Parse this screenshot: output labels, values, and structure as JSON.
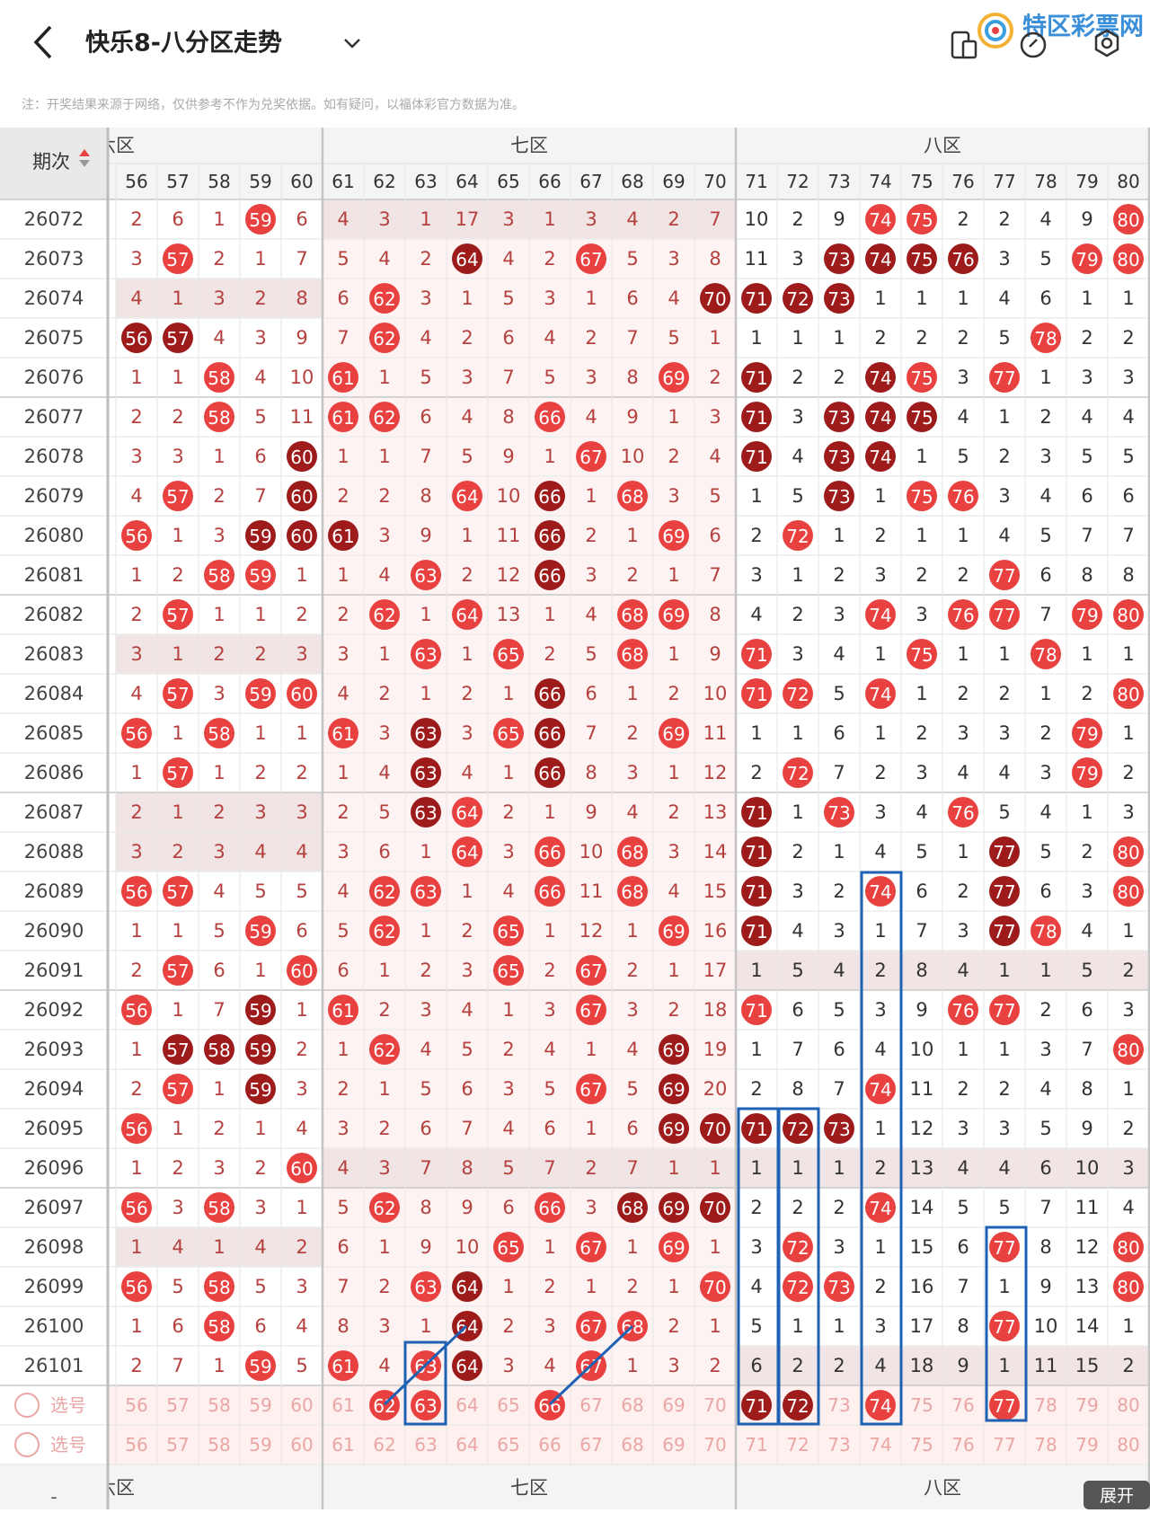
{
  "header": {
    "title": "快乐8-八分区走势",
    "watermark": "特区彩票网"
  },
  "note": "注：开奖结果来源于网络，仅供参考不作为兑奖依据。如有疑问，以福体彩官方数据为准。",
  "table": {
    "period_header": "期次",
    "zones": [
      {
        "name": "六区",
        "columns": 5
      },
      {
        "name": "七区",
        "columns": 10
      },
      {
        "name": "八区",
        "columns": 10
      }
    ],
    "columns": [
      56,
      57,
      58,
      59,
      60,
      61,
      62,
      63,
      64,
      65,
      66,
      67,
      68,
      69,
      70,
      71,
      72,
      73,
      74,
      75,
      76,
      77,
      78,
      79,
      80
    ],
    "ball_colors": {
      "light": "#e8413f",
      "dark": "#9e1b1b"
    },
    "rows": [
      {
        "period": 26072,
        "cells": [
          2,
          6,
          1,
          59,
          6,
          4,
          3,
          1,
          17,
          3,
          1,
          3,
          4,
          2,
          7,
          10,
          2,
          9,
          74,
          75,
          2,
          2,
          4,
          9,
          80
        ]
      },
      {
        "period": 26073,
        "cells": [
          3,
          57,
          2,
          1,
          7,
          5,
          4,
          2,
          {
            "value": 64,
            "tone": "dark"
          },
          4,
          2,
          67,
          5,
          3,
          8,
          11,
          3,
          {
            "value": 73,
            "tone": "dark"
          },
          {
            "value": 74,
            "tone": "dark"
          },
          {
            "value": 75,
            "tone": "dark"
          },
          {
            "value": 76,
            "tone": "dark"
          },
          3,
          5,
          79,
          80
        ]
      },
      {
        "period": 26074,
        "cells": [
          4,
          1,
          3,
          2,
          8,
          6,
          62,
          3,
          1,
          5,
          3,
          1,
          6,
          4,
          {
            "value": 70,
            "tone": "dark"
          },
          {
            "value": 71,
            "tone": "dark"
          },
          {
            "value": 72,
            "tone": "dark"
          },
          {
            "value": 73,
            "tone": "dark"
          },
          1,
          1,
          1,
          4,
          6,
          1,
          1
        ]
      },
      {
        "period": 26075,
        "cells": [
          {
            "value": 56,
            "tone": "dark"
          },
          {
            "value": 57,
            "tone": "dark"
          },
          4,
          3,
          9,
          7,
          62,
          4,
          2,
          6,
          4,
          2,
          7,
          5,
          1,
          1,
          1,
          1,
          2,
          2,
          2,
          5,
          78,
          2,
          2
        ]
      },
      {
        "period": 26076,
        "cells": [
          1,
          1,
          58,
          4,
          10,
          61,
          1,
          5,
          3,
          7,
          5,
          3,
          8,
          69,
          2,
          {
            "value": 71,
            "tone": "dark"
          },
          2,
          2,
          {
            "value": 74,
            "tone": "dark"
          },
          75,
          3,
          77,
          1,
          3,
          3
        ]
      },
      {
        "period": 26077,
        "cells": [
          2,
          2,
          58,
          5,
          11,
          61,
          62,
          6,
          4,
          8,
          66,
          4,
          9,
          1,
          3,
          {
            "value": 71,
            "tone": "dark"
          },
          3,
          {
            "value": 73,
            "tone": "dark"
          },
          {
            "value": 74,
            "tone": "dark"
          },
          {
            "value": 75,
            "tone": "dark"
          },
          4,
          1,
          2,
          4,
          4
        ]
      },
      {
        "period": 26078,
        "cells": [
          3,
          3,
          1,
          6,
          {
            "value": 60,
            "tone": "dark"
          },
          1,
          1,
          7,
          5,
          9,
          1,
          67,
          10,
          2,
          4,
          {
            "value": 71,
            "tone": "dark"
          },
          4,
          {
            "value": 73,
            "tone": "dark"
          },
          {
            "value": 74,
            "tone": "dark"
          },
          1,
          5,
          2,
          3,
          5,
          5
        ]
      },
      {
        "period": 26079,
        "cells": [
          4,
          57,
          2,
          7,
          {
            "value": 60,
            "tone": "dark"
          },
          2,
          2,
          8,
          64,
          10,
          {
            "value": 66,
            "tone": "dark"
          },
          1,
          68,
          3,
          5,
          1,
          5,
          {
            "value": 73,
            "tone": "dark"
          },
          1,
          75,
          76,
          3,
          4,
          6,
          6
        ]
      },
      {
        "period": 26080,
        "cells": [
          56,
          1,
          3,
          {
            "value": 59,
            "tone": "dark"
          },
          {
            "value": 60,
            "tone": "dark"
          },
          {
            "value": 61,
            "tone": "dark"
          },
          3,
          9,
          1,
          11,
          {
            "value": 66,
            "tone": "dark"
          },
          2,
          1,
          69,
          6,
          2,
          72,
          1,
          2,
          1,
          1,
          4,
          5,
          7,
          7
        ]
      },
      {
        "period": 26081,
        "cells": [
          1,
          2,
          58,
          59,
          1,
          1,
          4,
          63,
          2,
          12,
          {
            "value": 66,
            "tone": "dark"
          },
          3,
          2,
          1,
          7,
          3,
          1,
          2,
          3,
          2,
          2,
          77,
          6,
          8,
          8
        ]
      },
      {
        "period": 26082,
        "cells": [
          2,
          57,
          1,
          1,
          2,
          2,
          62,
          1,
          64,
          13,
          1,
          4,
          68,
          69,
          8,
          4,
          2,
          3,
          74,
          3,
          76,
          77,
          7,
          79,
          80
        ]
      },
      {
        "period": 26083,
        "cells": [
          3,
          1,
          2,
          2,
          3,
          3,
          1,
          63,
          1,
          65,
          2,
          5,
          68,
          1,
          9,
          71,
          3,
          4,
          1,
          75,
          1,
          1,
          78,
          1,
          1
        ]
      },
      {
        "period": 26084,
        "cells": [
          4,
          57,
          3,
          59,
          60,
          4,
          2,
          1,
          2,
          1,
          {
            "value": 66,
            "tone": "dark"
          },
          6,
          1,
          2,
          10,
          71,
          72,
          5,
          74,
          1,
          2,
          2,
          1,
          2,
          80
        ]
      },
      {
        "period": 26085,
        "cells": [
          56,
          1,
          58,
          1,
          1,
          61,
          3,
          {
            "value": 63,
            "tone": "dark"
          },
          3,
          65,
          {
            "value": 66,
            "tone": "dark"
          },
          7,
          2,
          69,
          11,
          1,
          1,
          6,
          1,
          2,
          3,
          3,
          2,
          79,
          1
        ]
      },
      {
        "period": 26086,
        "cells": [
          1,
          57,
          1,
          2,
          2,
          1,
          4,
          {
            "value": 63,
            "tone": "dark"
          },
          4,
          1,
          {
            "value": 66,
            "tone": "dark"
          },
          8,
          3,
          1,
          12,
          2,
          72,
          7,
          2,
          3,
          4,
          4,
          3,
          79,
          2
        ]
      },
      {
        "period": 26087,
        "cells": [
          2,
          1,
          2,
          3,
          3,
          2,
          5,
          {
            "value": 63,
            "tone": "dark"
          },
          64,
          2,
          1,
          9,
          4,
          2,
          13,
          {
            "value": 71,
            "tone": "dark"
          },
          1,
          73,
          3,
          4,
          76,
          5,
          4,
          1,
          3
        ]
      },
      {
        "period": 26088,
        "cells": [
          3,
          2,
          3,
          4,
          4,
          3,
          6,
          1,
          64,
          3,
          66,
          10,
          68,
          3,
          14,
          {
            "value": 71,
            "tone": "dark"
          },
          2,
          1,
          4,
          5,
          1,
          {
            "value": 77,
            "tone": "dark"
          },
          5,
          2,
          80
        ]
      },
      {
        "period": 26089,
        "cells": [
          56,
          57,
          4,
          5,
          5,
          4,
          62,
          63,
          1,
          4,
          66,
          11,
          68,
          4,
          15,
          {
            "value": 71,
            "tone": "dark"
          },
          3,
          2,
          74,
          6,
          2,
          {
            "value": 77,
            "tone": "dark"
          },
          6,
          3,
          80
        ]
      },
      {
        "period": 26090,
        "cells": [
          1,
          1,
          5,
          59,
          6,
          5,
          62,
          1,
          2,
          65,
          1,
          12,
          1,
          69,
          16,
          {
            "value": 71,
            "tone": "dark"
          },
          4,
          3,
          1,
          7,
          3,
          {
            "value": 77,
            "tone": "dark"
          },
          78,
          4,
          1
        ]
      },
      {
        "period": 26091,
        "cells": [
          2,
          57,
          6,
          1,
          60,
          6,
          1,
          2,
          3,
          65,
          2,
          67,
          2,
          1,
          17,
          1,
          5,
          4,
          2,
          8,
          4,
          1,
          1,
          5,
          2
        ]
      },
      {
        "period": 26092,
        "cells": [
          56,
          1,
          7,
          {
            "value": 59,
            "tone": "dark"
          },
          1,
          61,
          2,
          3,
          4,
          1,
          3,
          67,
          3,
          2,
          18,
          71,
          6,
          5,
          3,
          9,
          76,
          77,
          2,
          6,
          3
        ]
      },
      {
        "period": 26093,
        "cells": [
          1,
          {
            "value": 57,
            "tone": "dark"
          },
          {
            "value": 58,
            "tone": "dark"
          },
          {
            "value": 59,
            "tone": "dark"
          },
          2,
          1,
          62,
          4,
          5,
          2,
          4,
          1,
          4,
          {
            "value": 69,
            "tone": "dark"
          },
          19,
          1,
          7,
          6,
          4,
          10,
          1,
          1,
          3,
          7,
          80
        ]
      },
      {
        "period": 26094,
        "cells": [
          2,
          57,
          1,
          {
            "value": 59,
            "tone": "dark"
          },
          3,
          2,
          1,
          5,
          6,
          3,
          5,
          67,
          5,
          {
            "value": 69,
            "tone": "dark"
          },
          20,
          2,
          8,
          7,
          74,
          11,
          2,
          2,
          4,
          8,
          1
        ]
      },
      {
        "period": 26095,
        "cells": [
          56,
          1,
          2,
          1,
          4,
          3,
          2,
          6,
          7,
          4,
          6,
          1,
          6,
          {
            "value": 69,
            "tone": "dark"
          },
          {
            "value": 70,
            "tone": "dark"
          },
          {
            "value": 71,
            "tone": "dark"
          },
          {
            "value": 72,
            "tone": "dark"
          },
          {
            "value": 73,
            "tone": "dark"
          },
          1,
          12,
          3,
          3,
          5,
          9,
          2
        ]
      },
      {
        "period": 26096,
        "cells": [
          1,
          2,
          3,
          2,
          60,
          4,
          3,
          7,
          8,
          5,
          7,
          2,
          7,
          1,
          1,
          1,
          1,
          1,
          2,
          13,
          4,
          4,
          6,
          10,
          3
        ]
      },
      {
        "period": 26097,
        "cells": [
          56,
          3,
          58,
          3,
          1,
          5,
          62,
          8,
          9,
          6,
          66,
          3,
          {
            "value": 68,
            "tone": "dark"
          },
          {
            "value": 69,
            "tone": "dark"
          },
          {
            "value": 70,
            "tone": "dark"
          },
          2,
          2,
          2,
          74,
          14,
          5,
          5,
          7,
          11,
          4
        ]
      },
      {
        "period": 26098,
        "cells": [
          1,
          4,
          1,
          4,
          2,
          6,
          1,
          9,
          10,
          65,
          1,
          67,
          1,
          69,
          1,
          3,
          72,
          3,
          1,
          15,
          6,
          77,
          8,
          12,
          80
        ]
      },
      {
        "period": 26099,
        "cells": [
          56,
          5,
          58,
          5,
          3,
          7,
          2,
          63,
          {
            "value": 64,
            "tone": "dark"
          },
          1,
          2,
          1,
          2,
          1,
          70,
          4,
          72,
          73,
          2,
          16,
          7,
          1,
          9,
          13,
          80
        ]
      },
      {
        "period": 26100,
        "cells": [
          1,
          6,
          58,
          6,
          4,
          8,
          3,
          1,
          {
            "value": 64,
            "tone": "dark"
          },
          2,
          3,
          67,
          68,
          2,
          1,
          5,
          1,
          1,
          3,
          17,
          8,
          77,
          10,
          14,
          1
        ]
      },
      {
        "period": 26101,
        "cells": [
          2,
          7,
          1,
          59,
          5,
          61,
          4,
          63,
          {
            "value": 64,
            "tone": "dark"
          },
          3,
          4,
          67,
          1,
          3,
          2,
          6,
          2,
          2,
          4,
          18,
          9,
          1,
          11,
          15,
          2
        ]
      }
    ],
    "selector_rows": [
      {
        "label": "选号",
        "selected": [
          62,
          63,
          66,
          71,
          72,
          74,
          77
        ],
        "selected_dark": [
          71,
          72
        ]
      },
      {
        "label": "选号",
        "selected": [],
        "selected_dark": []
      }
    ],
    "footer_dash": "-",
    "expand_button": "展开"
  }
}
